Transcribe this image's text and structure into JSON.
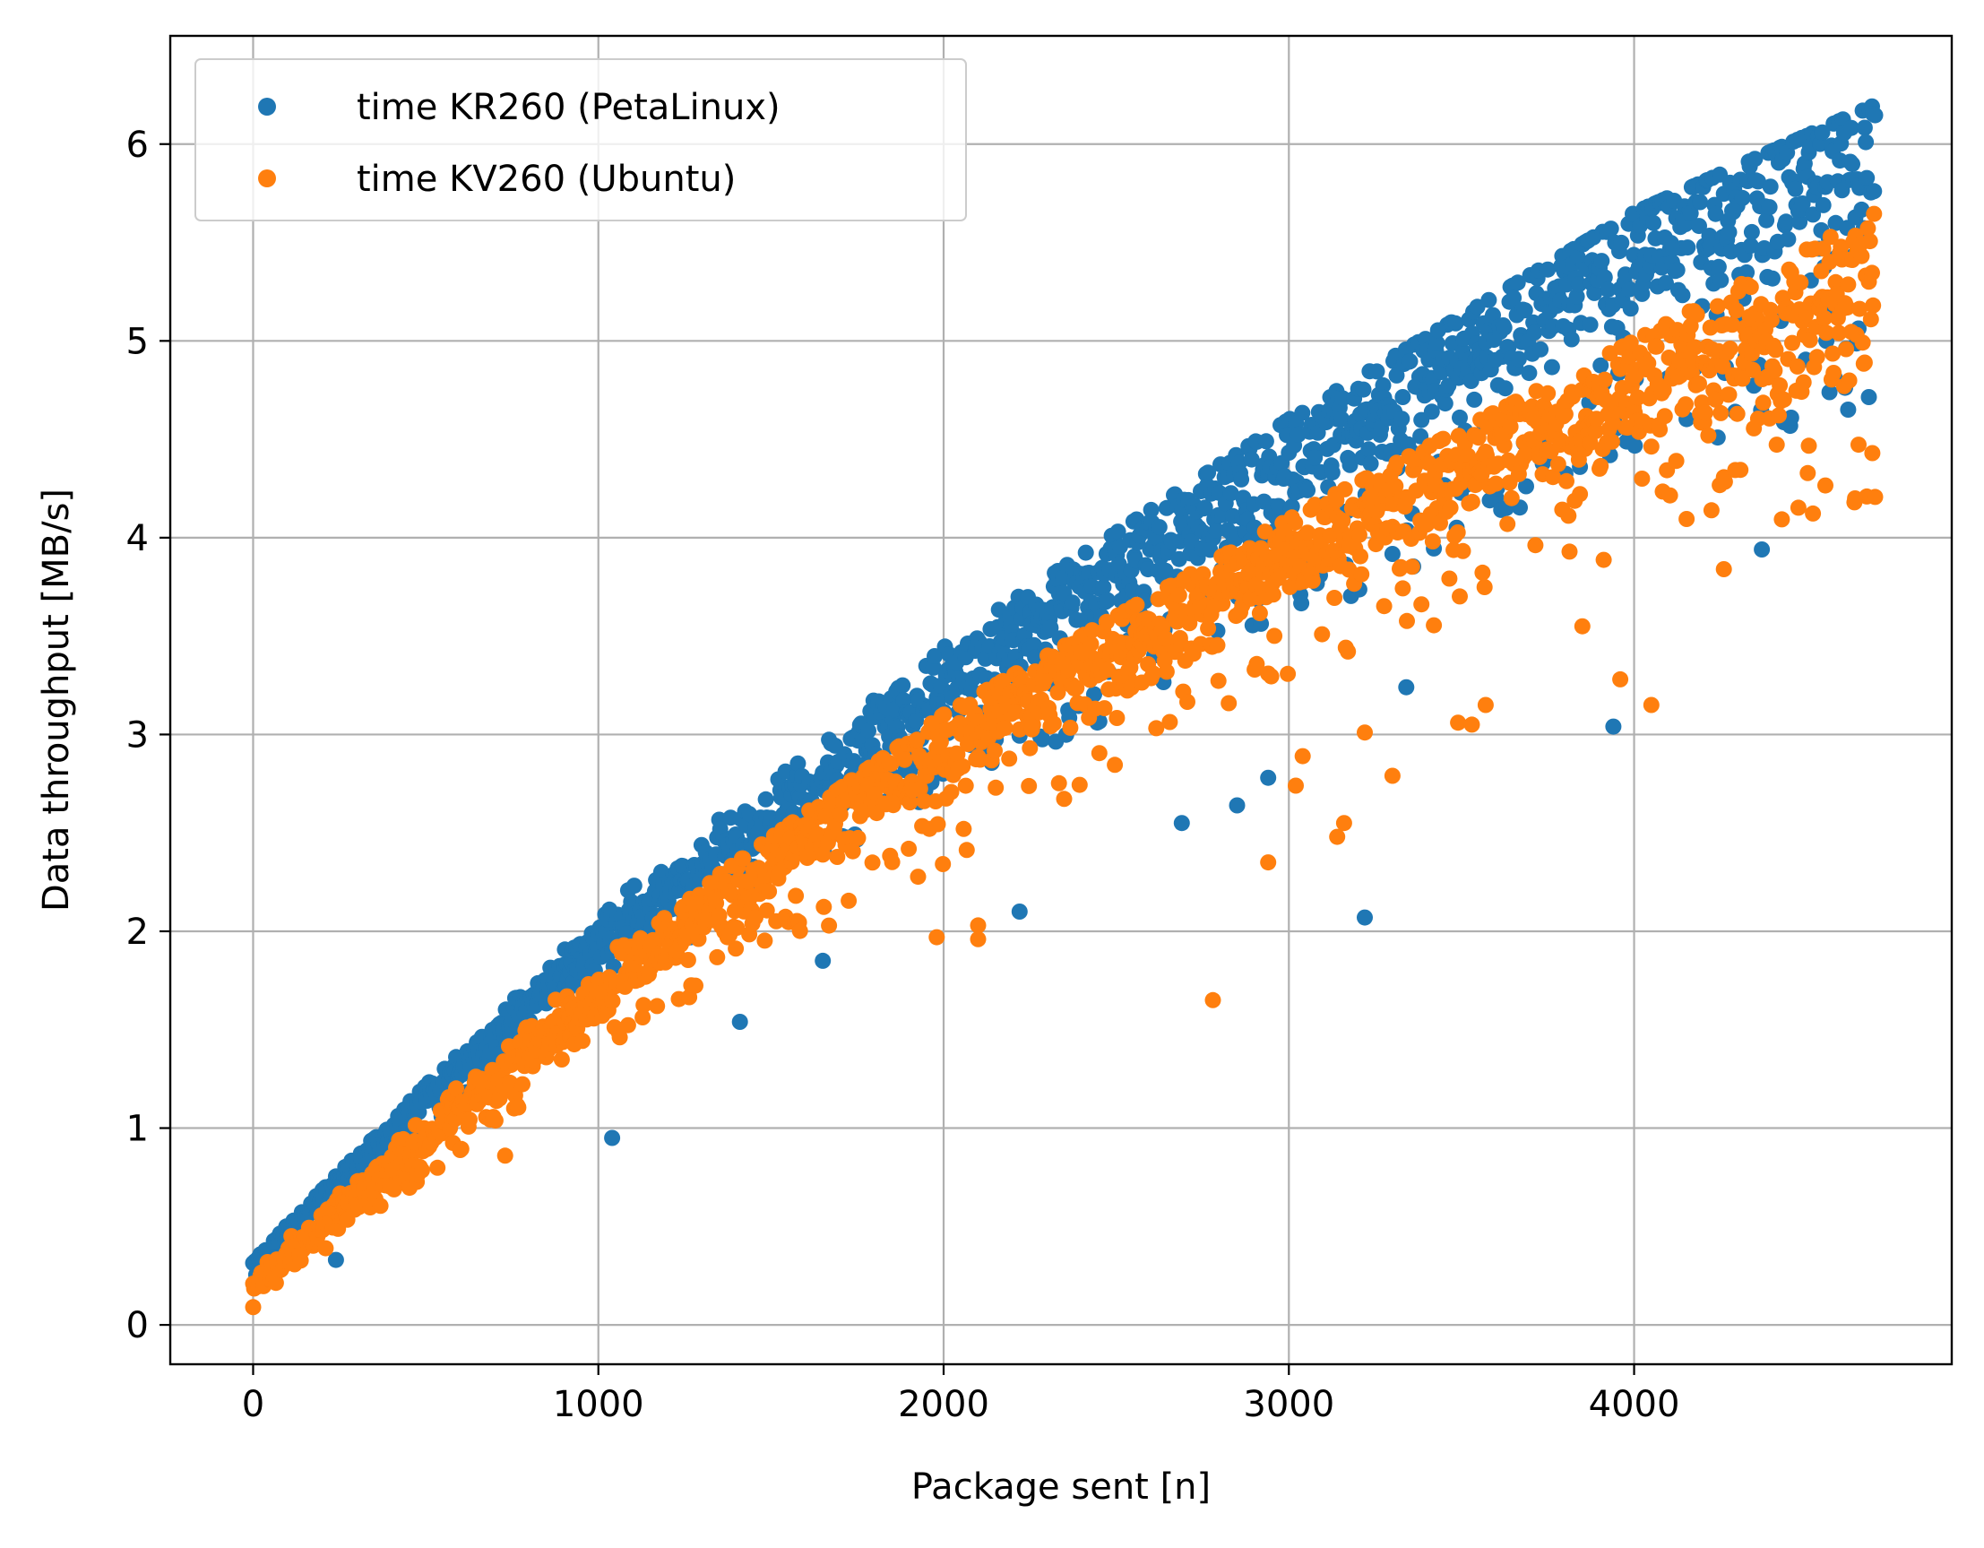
{
  "chart_data": {
    "type": "scatter",
    "xlabel": "Package sent [n]",
    "ylabel": "Data throughput [MB/s]",
    "xlim": [
      -240,
      4920
    ],
    "ylim": [
      -0.2,
      6.55
    ],
    "xticks": [
      0,
      1000,
      2000,
      3000,
      4000
    ],
    "yticks": [
      0,
      1,
      2,
      3,
      4,
      5,
      6
    ],
    "grid": true,
    "legend_position": "top-left",
    "x_count": 4700,
    "series": [
      {
        "name": "time KR260 (PetaLinux)",
        "color": "#1f77b4",
        "marker": "circle",
        "trend_points": [
          [
            0,
            0.3
          ],
          [
            500,
            1.15
          ],
          [
            1000,
            1.95
          ],
          [
            1500,
            2.55
          ],
          [
            2000,
            3.2
          ],
          [
            2500,
            3.85
          ],
          [
            3000,
            4.35
          ],
          [
            3500,
            4.95
          ],
          [
            4000,
            5.45
          ],
          [
            4500,
            5.85
          ],
          [
            4700,
            6.0
          ]
        ],
        "upper_envelope": [
          [
            0,
            0.33
          ],
          [
            1000,
            2.1
          ],
          [
            2000,
            3.45
          ],
          [
            3000,
            4.6
          ],
          [
            4000,
            5.65
          ],
          [
            4700,
            6.2
          ]
        ],
        "lower_envelope": [
          [
            0,
            0.22
          ],
          [
            1000,
            1.7
          ],
          [
            2000,
            2.7
          ],
          [
            3000,
            3.5
          ],
          [
            4000,
            4.4
          ],
          [
            4700,
            4.6
          ]
        ],
        "outliers": [
          [
            240,
            0.33
          ],
          [
            1040,
            0.95
          ],
          [
            1410,
            1.54
          ],
          [
            1650,
            1.85
          ],
          [
            2220,
            2.1
          ],
          [
            2690,
            2.55
          ],
          [
            2850,
            2.64
          ],
          [
            2940,
            2.78
          ],
          [
            3220,
            2.07
          ],
          [
            3940,
            3.04
          ],
          [
            3340,
            3.24
          ],
          [
            4370,
            3.94
          ]
        ]
      },
      {
        "name": "time KV260 (Ubuntu)",
        "color": "#ff7f0e",
        "marker": "circle",
        "trend_points": [
          [
            0,
            0.2
          ],
          [
            500,
            0.95
          ],
          [
            1000,
            1.7
          ],
          [
            1500,
            2.35
          ],
          [
            2000,
            2.95
          ],
          [
            2500,
            3.45
          ],
          [
            3000,
            3.9
          ],
          [
            3500,
            4.35
          ],
          [
            4000,
            4.75
          ],
          [
            4500,
            5.1
          ],
          [
            4700,
            5.3
          ]
        ],
        "upper_envelope": [
          [
            0,
            0.28
          ],
          [
            1000,
            1.85
          ],
          [
            2000,
            3.1
          ],
          [
            3000,
            4.1
          ],
          [
            4000,
            5.0
          ],
          [
            4700,
            5.65
          ]
        ],
        "lower_envelope": [
          [
            0,
            0.1
          ],
          [
            1000,
            1.4
          ],
          [
            2000,
            2.3
          ],
          [
            3000,
            3.3
          ],
          [
            4000,
            3.9
          ],
          [
            4700,
            4.2
          ]
        ],
        "outliers": [
          [
            0,
            0.09
          ],
          [
            730,
            0.86
          ],
          [
            1980,
            1.97
          ],
          [
            2100,
            1.96
          ],
          [
            2100,
            2.03
          ],
          [
            2780,
            1.65
          ],
          [
            2940,
            2.35
          ],
          [
            3020,
            2.74
          ],
          [
            3040,
            2.89
          ],
          [
            3140,
            2.48
          ],
          [
            3160,
            2.55
          ],
          [
            3300,
            2.79
          ],
          [
            3220,
            3.01
          ],
          [
            3490,
            3.06
          ],
          [
            3530,
            3.05
          ],
          [
            3570,
            3.15
          ],
          [
            3960,
            3.28
          ],
          [
            4050,
            3.15
          ],
          [
            3850,
            3.55
          ],
          [
            4260,
            3.84
          ],
          [
            4640,
            4.2
          ],
          [
            4690,
            4.43
          ]
        ]
      }
    ]
  }
}
